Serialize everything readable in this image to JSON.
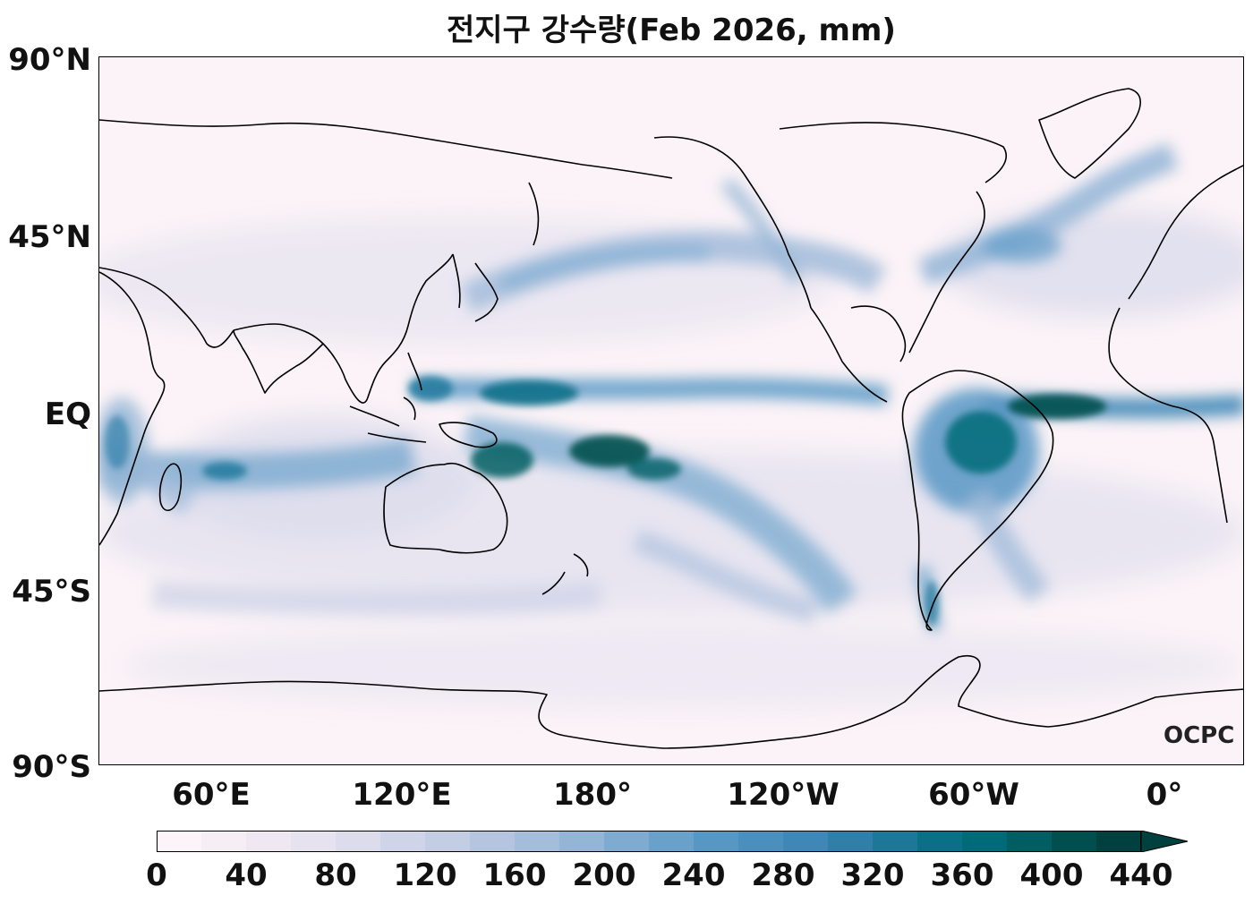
{
  "title": "전지구 강수량(Feb 2026, mm)",
  "lat_labels": [
    "90°N",
    "45°N",
    "EQ",
    "45°S",
    "90°S"
  ],
  "lon_labels": [
    "60°E",
    "120°E",
    "180°",
    "120°W",
    "60°W",
    "0°"
  ],
  "logo": "OCPC",
  "colorbar": {
    "ticks": [
      "0",
      "40",
      "80",
      "120",
      "160",
      "200",
      "240",
      "280",
      "320",
      "360",
      "400",
      "440"
    ],
    "levels": [
      0,
      20,
      40,
      60,
      80,
      100,
      120,
      140,
      160,
      180,
      200,
      220,
      240,
      260,
      280,
      300,
      320,
      340,
      360,
      380,
      400,
      420,
      440
    ],
    "colors": [
      "#fcf4f8",
      "#f5eef5",
      "#efe8f2",
      "#e7e2ef",
      "#dddcec",
      "#d0d4e8",
      "#c3cde4",
      "#b5c5e0",
      "#a4bddb",
      "#93b5d6",
      "#7fabd0",
      "#6aa1ca",
      "#5797c4",
      "#4a8fbe",
      "#3e87b6",
      "#2f7fa8",
      "#1c7799",
      "#0a7088",
      "#006b78",
      "#005e62",
      "#004f4e",
      "#00403e"
    ],
    "extend": "max"
  },
  "map": {
    "projection": "plate carree, centered on 150°W (left edge 30°E)",
    "variable": "monthly precipitation",
    "units": "mm"
  }
}
